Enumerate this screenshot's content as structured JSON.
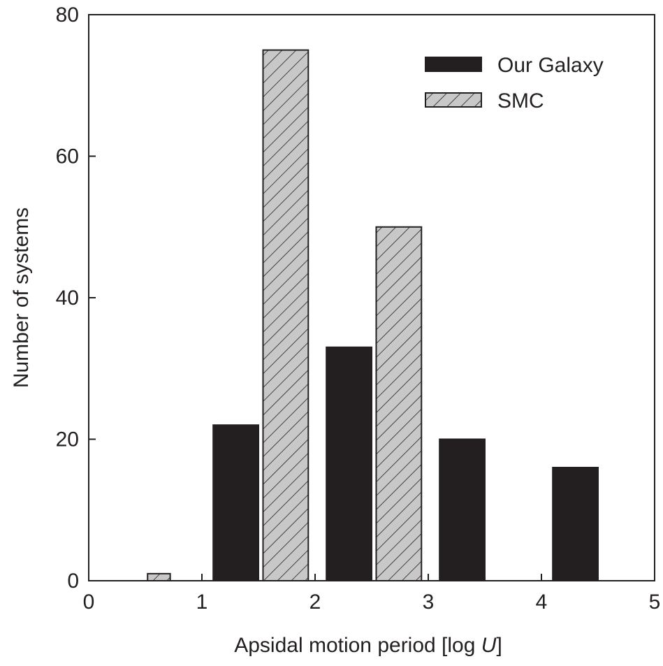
{
  "chart_data": {
    "type": "bar",
    "xlabel_prefix": "Apsidal motion period [log ",
    "xlabel_var": "U",
    "xlabel_suffix": "]",
    "ylabel": "Number of systems",
    "xlim": [
      0,
      5
    ],
    "ylim": [
      0,
      80
    ],
    "x_ticks": [
      "0",
      "1",
      "2",
      "3",
      "4",
      "5"
    ],
    "y_ticks": [
      "0",
      "20",
      "40",
      "60",
      "80"
    ],
    "legend_position": "top-right",
    "grid": false,
    "series": [
      {
        "name": "Our Galaxy",
        "color": "#231f20",
        "pattern": "solid",
        "bars": [
          {
            "x0": 1.1,
            "x1": 1.5,
            "value": 22
          },
          {
            "x0": 2.1,
            "x1": 2.5,
            "value": 33
          },
          {
            "x0": 3.1,
            "x1": 3.5,
            "value": 20
          },
          {
            "x0": 4.1,
            "x1": 4.5,
            "value": 16
          }
        ]
      },
      {
        "name": "SMC",
        "color": "#c8c8c8",
        "pattern": "hatched",
        "bars": [
          {
            "x0": 0.52,
            "x1": 0.72,
            "value": 1
          },
          {
            "x0": 1.54,
            "x1": 1.94,
            "value": 75
          },
          {
            "x0": 2.54,
            "x1": 2.94,
            "value": 50
          }
        ]
      }
    ]
  }
}
